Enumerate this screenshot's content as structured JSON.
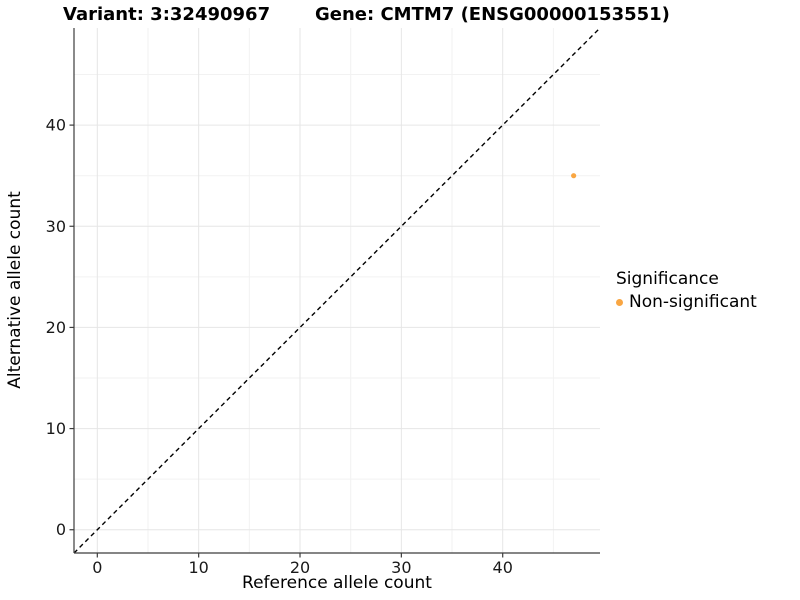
{
  "chart_data": {
    "type": "scatter",
    "titles": {
      "variant": "Variant: 3:32490967",
      "gene": "Gene: CMTM7 (ENSG00000153551)"
    },
    "xlabel": "Reference allele count",
    "ylabel": "Alternative allele count",
    "x_ticks": [
      0,
      10,
      20,
      30,
      40
    ],
    "y_ticks": [
      0,
      10,
      20,
      30,
      40
    ],
    "x_minor_gridlines": [
      5,
      15,
      25,
      35,
      45
    ],
    "y_minor_gridlines": [
      5,
      15,
      25,
      35,
      45
    ],
    "xlim": [
      -2.3,
      49.6
    ],
    "ylim": [
      -2.3,
      49.6
    ],
    "grid": true,
    "points": [
      {
        "x": 47,
        "y": 35,
        "series": "Non-significant"
      }
    ],
    "reference_line": {
      "slope": 1,
      "intercept": 0,
      "style": "dashed",
      "color": "#000000"
    },
    "legend": {
      "title": "Significance",
      "position": "right",
      "entries": [
        {
          "label": "Non-significant",
          "color": "#F9A642"
        }
      ]
    },
    "colors": {
      "point": "#F9A642",
      "grid_major": "#e6e6e6",
      "grid_minor": "#f2f2f2",
      "axis_line": "#3c3c3c",
      "tick_label": "#1a1a1a"
    }
  }
}
